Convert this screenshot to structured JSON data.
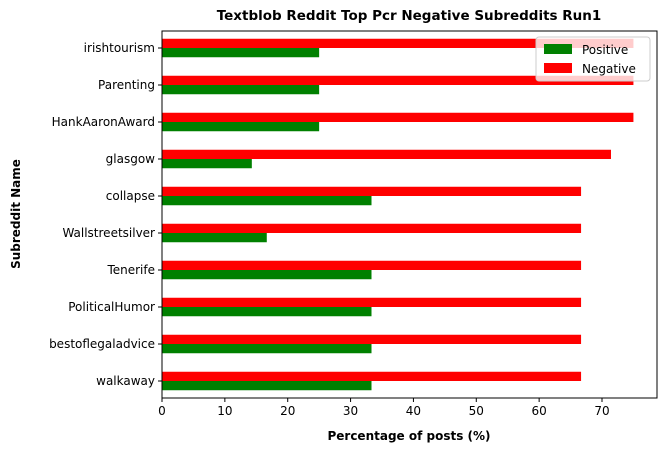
{
  "chart_data": {
    "type": "bar",
    "orientation": "horizontal",
    "title": "Textblob Reddit Top Pcr Negative Subreddits Run1",
    "xlabel": "Percentage of posts (%)",
    "ylabel": "Subreddit Name",
    "xlim": [
      0,
      78.75
    ],
    "xticks": [
      0,
      10,
      20,
      30,
      40,
      50,
      60,
      70
    ],
    "grid": false,
    "legend_position": "top-right",
    "categories": [
      "irishtourism",
      "Parenting",
      "HankAaronAward",
      "glasgow",
      "collapse",
      "Wallstreetsilver",
      "Tenerife",
      "PoliticalHumor",
      "bestoflegaladvice",
      "walkaway"
    ],
    "series": [
      {
        "name": "Positive",
        "color": "#008000",
        "values": [
          25.0,
          25.0,
          25.0,
          14.29,
          33.33,
          16.67,
          33.33,
          33.33,
          33.33,
          33.33
        ]
      },
      {
        "name": "Negative",
        "color": "#ff0000",
        "values": [
          75.0,
          75.0,
          75.0,
          71.43,
          66.67,
          66.67,
          66.67,
          66.67,
          66.67,
          66.67
        ]
      }
    ]
  }
}
